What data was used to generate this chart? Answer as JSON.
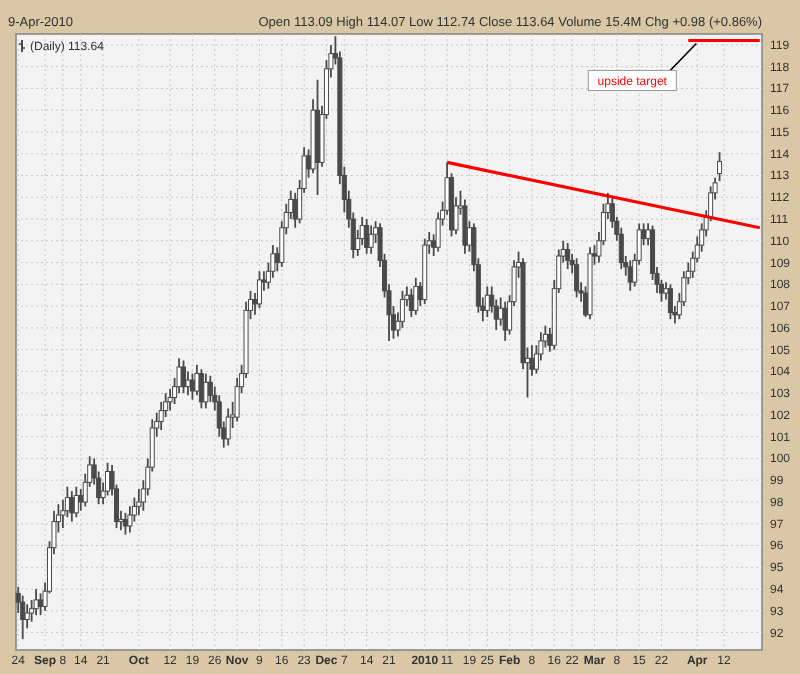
{
  "chart_data": {
    "type": "candlestick",
    "subtitle": "9-Apr-2010",
    "annotations": [
      "Open 113.09 High 114.07 Low 112.74 Close 113.64 Volume 15.4M Chg +0.98 (+0.86%)"
    ],
    "categories": [
      "24",
      null,
      null,
      null,
      null,
      null,
      "Sep",
      null,
      null,
      null,
      "8",
      null,
      null,
      null,
      "14",
      null,
      null,
      null,
      null,
      "21",
      null,
      null,
      null,
      null,
      null,
      null,
      null,
      "Oct",
      null,
      null,
      null,
      null,
      null,
      null,
      "12",
      null,
      null,
      null,
      null,
      "19",
      null,
      null,
      null,
      null,
      "26",
      null,
      null,
      null,
      null,
      "Nov",
      null,
      null,
      null,
      null,
      "9",
      null,
      null,
      null,
      null,
      "16",
      null,
      null,
      null,
      null,
      "23",
      null,
      null,
      null,
      null,
      "Dec",
      null,
      null,
      null,
      "7",
      null,
      null,
      null,
      null,
      "14",
      null,
      null,
      null,
      null,
      "21",
      null,
      null,
      null,
      null,
      null,
      null,
      null,
      "2010",
      null,
      null,
      null,
      null,
      "11",
      null,
      null,
      null,
      null,
      "19",
      null,
      null,
      null,
      "25",
      null,
      null,
      null,
      null,
      "Feb",
      null,
      null,
      null,
      null,
      "8",
      null,
      null,
      null,
      null,
      "16",
      null,
      null,
      null,
      "22",
      null,
      null,
      null,
      null,
      "Mar",
      null,
      null,
      null,
      null,
      "8",
      null,
      null,
      null,
      null,
      "15",
      null,
      null,
      null,
      null,
      "22",
      null,
      null,
      null,
      null,
      null,
      null,
      null,
      "Apr",
      null,
      null,
      null,
      null,
      null,
      "12",
      null,
      null,
      null,
      null,
      null,
      null,
      null,
      null
    ],
    "series": [
      {
        "name": "(Daily) 113.64",
        "color": "#4a4a4a",
        "ohlc": [
          [
            93.8,
            94.1,
            92.9,
            93.4
          ],
          [
            93.4,
            93.7,
            91.7,
            92.6
          ],
          [
            92.6,
            93.3,
            92.2,
            92.9
          ],
          [
            92.9,
            93.5,
            92.5,
            93.1
          ],
          [
            93.1,
            94.0,
            92.8,
            93.5
          ],
          [
            93.5,
            93.8,
            92.8,
            93.2
          ],
          [
            93.2,
            94.3,
            93.0,
            93.9
          ],
          [
            93.9,
            96.2,
            93.8,
            95.9
          ],
          [
            95.9,
            97.6,
            95.6,
            97.1
          ],
          [
            97.1,
            97.9,
            96.6,
            97.4
          ],
          [
            97.4,
            98.1,
            96.8,
            97.6
          ],
          [
            97.6,
            98.7,
            97.3,
            98.2
          ],
          [
            98.2,
            98.5,
            97.1,
            97.5
          ],
          [
            97.5,
            98.7,
            97.3,
            98.3
          ],
          [
            98.3,
            98.6,
            97.6,
            98.0
          ],
          [
            98.0,
            99.3,
            97.8,
            98.9
          ],
          [
            98.9,
            100.1,
            98.7,
            99.7
          ],
          [
            99.7,
            100.0,
            98.8,
            99.1
          ],
          [
            99.1,
            99.4,
            97.9,
            98.2
          ],
          [
            98.2,
            98.9,
            97.9,
            98.5
          ],
          [
            98.5,
            99.8,
            98.3,
            99.4
          ],
          [
            99.4,
            99.7,
            98.3,
            98.6
          ],
          [
            98.6,
            98.8,
            96.8,
            97.1
          ],
          [
            97.1,
            97.6,
            96.7,
            97.2
          ],
          [
            97.2,
            97.5,
            96.5,
            96.9
          ],
          [
            96.9,
            97.8,
            96.6,
            97.4
          ],
          [
            97.4,
            98.2,
            97.1,
            97.8
          ],
          [
            97.8,
            98.6,
            97.4,
            98.0
          ],
          [
            98.0,
            99.0,
            97.6,
            98.6
          ],
          [
            98.6,
            100.0,
            98.3,
            99.6
          ],
          [
            99.6,
            101.8,
            99.4,
            101.4
          ],
          [
            101.4,
            102.1,
            101.0,
            101.7
          ],
          [
            101.7,
            102.6,
            101.3,
            102.2
          ],
          [
            102.2,
            103.0,
            101.9,
            102.6
          ],
          [
            102.6,
            103.2,
            102.2,
            102.8
          ],
          [
            102.8,
            103.7,
            102.5,
            103.3
          ],
          [
            103.3,
            104.6,
            103.0,
            104.2
          ],
          [
            104.2,
            104.5,
            103.0,
            103.3
          ],
          [
            103.3,
            104.0,
            102.9,
            103.6
          ],
          [
            103.6,
            103.9,
            102.7,
            103.1
          ],
          [
            103.1,
            104.3,
            102.9,
            103.9
          ],
          [
            103.9,
            104.1,
            102.3,
            102.6
          ],
          [
            102.6,
            103.9,
            102.3,
            103.5
          ],
          [
            103.5,
            103.8,
            102.6,
            102.9
          ],
          [
            102.9,
            103.3,
            102.2,
            102.6
          ],
          [
            102.6,
            102.9,
            101.0,
            101.4
          ],
          [
            101.4,
            101.7,
            100.5,
            100.9
          ],
          [
            100.9,
            102.3,
            100.6,
            101.9
          ],
          [
            101.9,
            102.6,
            101.4,
            102.0
          ],
          [
            101.9,
            103.7,
            101.7,
            103.3
          ],
          [
            103.3,
            104.3,
            103.0,
            103.9
          ],
          [
            103.9,
            107.2,
            103.7,
            106.8
          ],
          [
            106.8,
            107.7,
            106.4,
            107.3
          ],
          [
            107.3,
            107.6,
            106.6,
            107.1
          ],
          [
            107.1,
            108.6,
            106.9,
            108.2
          ],
          [
            108.2,
            108.6,
            107.7,
            108.1
          ],
          [
            108.1,
            109.0,
            107.8,
            108.6
          ],
          [
            108.6,
            109.8,
            108.3,
            109.4
          ],
          [
            109.4,
            109.7,
            108.6,
            109.0
          ],
          [
            109.0,
            110.9,
            108.8,
            110.6
          ],
          [
            110.6,
            111.7,
            110.3,
            111.3
          ],
          [
            111.3,
            112.3,
            111.0,
            111.9
          ],
          [
            111.9,
            112.2,
            110.6,
            111.0
          ],
          [
            111.0,
            112.8,
            110.8,
            112.4
          ],
          [
            112.4,
            114.3,
            112.2,
            113.9
          ],
          [
            113.9,
            114.2,
            112.9,
            113.3
          ],
          [
            113.3,
            116.5,
            113.1,
            116.0
          ],
          [
            116.0,
            117.4,
            112.1,
            113.6
          ],
          [
            113.6,
            116.2,
            113.4,
            115.8
          ],
          [
            115.8,
            118.3,
            115.6,
            117.9
          ],
          [
            117.9,
            119.0,
            117.5,
            118.6
          ],
          [
            118.6,
            119.4,
            118.1,
            118.4
          ],
          [
            118.4,
            118.7,
            112.6,
            113.0
          ],
          [
            113.0,
            113.4,
            111.3,
            111.9
          ],
          [
            111.9,
            112.3,
            110.6,
            111.0
          ],
          [
            111.0,
            111.3,
            109.2,
            109.6
          ],
          [
            109.6,
            110.5,
            109.3,
            110.1
          ],
          [
            110.1,
            111.1,
            109.8,
            110.7
          ],
          [
            110.7,
            111.0,
            109.4,
            109.7
          ],
          [
            109.7,
            110.7,
            109.4,
            110.3
          ],
          [
            110.3,
            110.9,
            109.9,
            110.6
          ],
          [
            110.6,
            110.8,
            108.8,
            109.1
          ],
          [
            109.1,
            109.4,
            107.4,
            107.7
          ],
          [
            107.7,
            108.0,
            105.4,
            106.6
          ],
          [
            106.6,
            107.0,
            105.5,
            105.9
          ],
          [
            105.9,
            106.7,
            105.6,
            106.3
          ],
          [
            106.3,
            107.7,
            106.0,
            107.3
          ],
          [
            107.3,
            107.9,
            107.0,
            107.5
          ],
          [
            107.5,
            107.8,
            106.5,
            106.8
          ],
          [
            106.8,
            108.3,
            106.6,
            107.9
          ],
          [
            107.9,
            108.1,
            107.0,
            107.3
          ],
          [
            107.3,
            110.1,
            107.1,
            109.8
          ],
          [
            109.8,
            110.4,
            109.4,
            110.0
          ],
          [
            110.0,
            110.3,
            109.3,
            109.7
          ],
          [
            109.7,
            111.3,
            109.5,
            111.0
          ],
          [
            111.0,
            111.8,
            110.7,
            111.4
          ],
          [
            111.4,
            113.6,
            111.2,
            112.9
          ],
          [
            112.9,
            113.1,
            110.2,
            110.5
          ],
          [
            110.5,
            112.0,
            110.3,
            111.6
          ],
          [
            111.5,
            112.3,
            111.2,
            111.6
          ],
          [
            111.6,
            111.9,
            109.4,
            109.8
          ],
          [
            109.8,
            110.9,
            109.5,
            110.6
          ],
          [
            110.6,
            110.8,
            108.6,
            108.9
          ],
          [
            108.9,
            109.2,
            106.7,
            107.0
          ],
          [
            107.0,
            107.4,
            106.3,
            106.8
          ],
          [
            106.8,
            107.9,
            106.5,
            107.5
          ],
          [
            107.5,
            107.9,
            106.7,
            107.0
          ],
          [
            107.0,
            107.3,
            105.9,
            106.4
          ],
          [
            106.4,
            107.4,
            106.1,
            106.9
          ],
          [
            106.9,
            107.2,
            105.4,
            105.9
          ],
          [
            105.9,
            107.5,
            105.7,
            107.2
          ],
          [
            107.2,
            109.1,
            107.0,
            108.8
          ],
          [
            108.8,
            109.5,
            108.3,
            109.0
          ],
          [
            109.0,
            109.2,
            104.1,
            104.4
          ],
          [
            104.4,
            105.1,
            102.8,
            104.6
          ],
          [
            104.6,
            105.2,
            103.8,
            104.1
          ],
          [
            104.1,
            105.2,
            103.9,
            104.8
          ],
          [
            104.8,
            105.8,
            104.5,
            105.4
          ],
          [
            105.4,
            106.1,
            105.1,
            105.7
          ],
          [
            105.7,
            106.0,
            104.9,
            105.2
          ],
          [
            105.2,
            108.2,
            105.0,
            107.8
          ],
          [
            107.8,
            109.6,
            107.6,
            109.3
          ],
          [
            109.3,
            110.0,
            109.0,
            109.6
          ],
          [
            109.6,
            109.9,
            108.7,
            109.1
          ],
          [
            109.1,
            109.4,
            108.5,
            108.9
          ],
          [
            108.9,
            109.2,
            107.4,
            107.7
          ],
          [
            107.7,
            108.1,
            107.2,
            107.6
          ],
          [
            107.6,
            107.9,
            106.5,
            106.6
          ],
          [
            106.6,
            109.7,
            106.4,
            109.4
          ],
          [
            109.4,
            109.8,
            108.9,
            109.3
          ],
          [
            109.3,
            110.4,
            109.0,
            110.0
          ],
          [
            110.0,
            111.7,
            109.8,
            111.3
          ],
          [
            111.3,
            112.2,
            111.0,
            111.7
          ],
          [
            111.7,
            112.0,
            110.6,
            110.9
          ],
          [
            110.9,
            111.1,
            110.0,
            110.3
          ],
          [
            110.3,
            110.6,
            108.7,
            109.0
          ],
          [
            109.0,
            109.3,
            108.4,
            108.8
          ],
          [
            108.8,
            109.1,
            107.7,
            108.1
          ],
          [
            108.1,
            109.4,
            107.9,
            109.1
          ],
          [
            109.1,
            110.8,
            108.9,
            110.5
          ],
          [
            110.5,
            110.8,
            109.8,
            110.1
          ],
          [
            110.1,
            110.8,
            109.8,
            110.5
          ],
          [
            110.5,
            110.7,
            108.2,
            108.5
          ],
          [
            108.5,
            108.8,
            107.6,
            108.0
          ],
          [
            108.0,
            108.2,
            107.2,
            107.6
          ],
          [
            107.6,
            108.1,
            107.3,
            107.8
          ],
          [
            107.8,
            108.0,
            106.4,
            106.7
          ],
          [
            106.7,
            107.0,
            106.2,
            106.6
          ],
          [
            106.6,
            107.6,
            106.4,
            107.2
          ],
          [
            107.2,
            108.6,
            107.0,
            108.3
          ],
          [
            108.3,
            109.0,
            108.0,
            108.6
          ],
          [
            108.6,
            109.5,
            108.3,
            109.2
          ],
          [
            109.2,
            110.2,
            109.0,
            109.8
          ],
          [
            109.8,
            110.8,
            109.5,
            110.5
          ],
          [
            110.5,
            111.4,
            110.2,
            111.1
          ],
          [
            111.1,
            112.5,
            110.9,
            112.2
          ],
          [
            112.2,
            112.9,
            111.9,
            112.66
          ],
          [
            113.09,
            114.07,
            112.74,
            113.64
          ],
          null,
          null,
          null,
          null,
          null,
          null,
          null,
          null,
          null
        ]
      },
      {
        "type": "line",
        "color": "#ff0000",
        "values": [
          null,
          null,
          null,
          null,
          null,
          null,
          null,
          null,
          null,
          null,
          null,
          null,
          null,
          null,
          null,
          null,
          null,
          null,
          null,
          null,
          null,
          null,
          null,
          null,
          null,
          null,
          null,
          null,
          null,
          null,
          null,
          null,
          null,
          null,
          null,
          null,
          null,
          null,
          null,
          null,
          null,
          null,
          null,
          null,
          null,
          null,
          null,
          null,
          null,
          null,
          null,
          null,
          null,
          null,
          null,
          null,
          null,
          null,
          null,
          null,
          null,
          null,
          null,
          null,
          null,
          null,
          null,
          null,
          null,
          null,
          null,
          null,
          null,
          null,
          null,
          null,
          null,
          null,
          null,
          null,
          null,
          null,
          null,
          null,
          null,
          null,
          null,
          null,
          null,
          null,
          null,
          null,
          null,
          null,
          null,
          null,
          113.6,
          null,
          null,
          null,
          null,
          null,
          null,
          null,
          null,
          null,
          null,
          null,
          null,
          null,
          null,
          null,
          null,
          null,
          null,
          null,
          null,
          null,
          null,
          null,
          null,
          null,
          null,
          null,
          null,
          null,
          null,
          null,
          null,
          null,
          null,
          null,
          null,
          null,
          null,
          null,
          null,
          null,
          null,
          null,
          null,
          null,
          null,
          null,
          null,
          null,
          null,
          null,
          null,
          null,
          null,
          null,
          null,
          null,
          null,
          null,
          null,
          null,
          null,
          null,
          null,
          null,
          null,
          null,
          null,
          null,
          110.6
        ]
      }
    ],
    "ref_lines": [
      {
        "axis": "y",
        "value": 119.2,
        "label": "upside target",
        "color": "#ff0000"
      }
    ],
    "ylim": [
      91.2,
      119.5
    ],
    "yticks": [
      92,
      93,
      94,
      95,
      96,
      97,
      98,
      99,
      100,
      101,
      102,
      103,
      104,
      105,
      106,
      107,
      108,
      109,
      110,
      111,
      112,
      113,
      114,
      115,
      116,
      117,
      118,
      119
    ],
    "grid": true,
    "legend": "top left"
  }
}
